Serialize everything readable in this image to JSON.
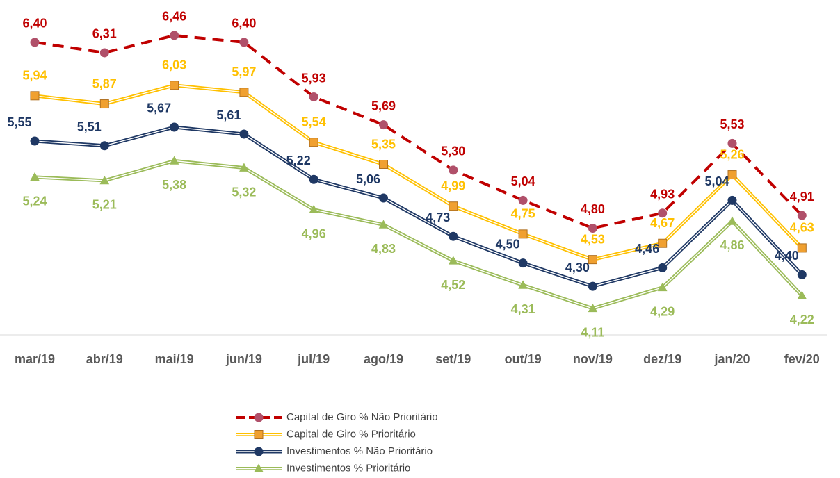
{
  "chart_data": {
    "type": "line",
    "categories": [
      "mar/19",
      "abr/19",
      "mai/19",
      "jun/19",
      "jul/19",
      "ago/19",
      "set/19",
      "out/19",
      "nov/19",
      "dez/19",
      "jan/20",
      "fev/20"
    ],
    "ylim": [
      3.9,
      6.8
    ],
    "series": [
      {
        "name": "Capital de Giro % Não Prioritário",
        "color": "#c00000",
        "marker_color": "#b0506a",
        "line_style": "dashed",
        "marker": "circle",
        "values": [
          6.4,
          6.31,
          6.46,
          6.4,
          5.93,
          5.69,
          5.3,
          5.04,
          4.8,
          4.93,
          5.53,
          4.91
        ],
        "value_labels": [
          "6,40",
          "6,31",
          "6,46",
          "6,40",
          "5,93",
          "5,69",
          "5,30",
          "5,04",
          "4,80",
          "4,93",
          "5,53",
          "4,91"
        ]
      },
      {
        "name": "Capital de Giro % Prioritário",
        "color": "#ffc000",
        "marker_color": "#f0a030",
        "line_style": "double",
        "marker": "square",
        "values": [
          5.94,
          5.87,
          6.03,
          5.97,
          5.54,
          5.35,
          4.99,
          4.75,
          4.53,
          4.67,
          5.26,
          4.63
        ],
        "value_labels": [
          "5,94",
          "5,87",
          "6,03",
          "5,97",
          "5,54",
          "5,35",
          "4,99",
          "4,75",
          "4,53",
          "4,67",
          "5,26",
          "4,63"
        ]
      },
      {
        "name": "Investimentos % Não Prioritário",
        "color": "#1f3864",
        "marker_color": "#1f3864",
        "line_style": "double",
        "marker": "circle",
        "values": [
          5.55,
          5.51,
          5.67,
          5.61,
          5.22,
          5.06,
          4.73,
          4.5,
          4.3,
          4.46,
          5.04,
          4.4
        ],
        "value_labels": [
          "5,55",
          "5,51",
          "5,67",
          "5,61",
          "5,22",
          "5,06",
          "4,73",
          "4,50",
          "4,30",
          "4,46",
          "5,04",
          "4,40"
        ]
      },
      {
        "name": "Investimentos % Prioritário",
        "color": "#9bbb59",
        "marker_color": "#9bbb59",
        "line_style": "double",
        "marker": "triangle",
        "values": [
          5.24,
          5.21,
          5.38,
          5.32,
          4.96,
          4.83,
          4.52,
          4.31,
          4.11,
          4.29,
          4.86,
          4.22
        ],
        "value_labels": [
          "5,24",
          "5,21",
          "5,38",
          "5,32",
          "4,96",
          "4,83",
          "4,52",
          "4,31",
          "4,11",
          "4,29",
          "4,86",
          "4,22"
        ]
      }
    ]
  }
}
